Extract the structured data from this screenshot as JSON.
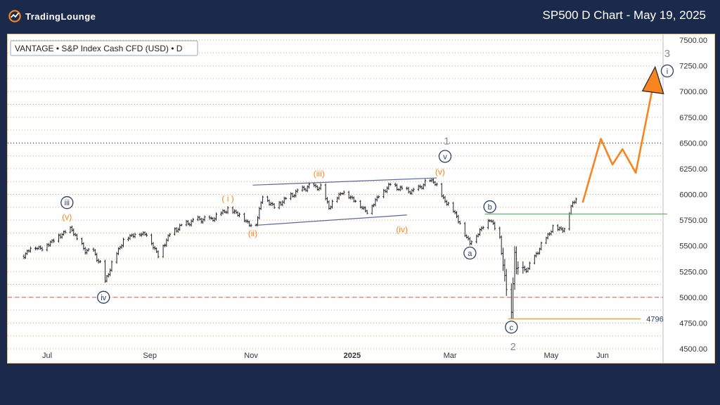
{
  "header": {
    "brand": "TradingLounge",
    "title": "SP500 D Chart - May 19, 2025"
  },
  "legend": "VANTAGE • S&P Index Cash CFD (USD) • D",
  "colors": {
    "background": "#1b2a4a",
    "wave_orange": "#f7841e",
    "wave_navy": "#2b3f63",
    "wave_grey": "#888888",
    "support_green": "#4caf50",
    "level_gold": "#e0a030",
    "dashed_red": "#e05050",
    "grid_orange": "#f3a555"
  },
  "chart_data": {
    "type": "candlestick",
    "title": "SP500 D Chart - May 19, 2025",
    "xlabel": "",
    "ylabel": "",
    "x_ticks": [
      "Jul",
      "Sep",
      "Nov",
      "2025",
      "Mar",
      "May",
      "Jun"
    ],
    "y_ticks": [
      4500,
      4750,
      5000,
      5250,
      5500,
      5750,
      6000,
      6250,
      6500,
      6750,
      7000,
      7250,
      7500
    ],
    "ylim": [
      4380,
      7560
    ],
    "grid": true,
    "price_path": [
      [
        "2024-06-17",
        5400
      ],
      [
        "2024-06-21",
        5490
      ],
      [
        "2024-06-28",
        5480
      ],
      [
        "2024-07-05",
        5560
      ],
      [
        "2024-07-10",
        5620
      ],
      [
        "2024-07-16",
        5670
      ],
      [
        "2024-07-19",
        5560
      ],
      [
        "2024-07-24",
        5460
      ],
      [
        "2024-07-29",
        5440
      ],
      [
        "2024-08-02",
        5330
      ],
      [
        "2024-08-05",
        5150
      ],
      [
        "2024-08-09",
        5330
      ],
      [
        "2024-08-16",
        5560
      ],
      [
        "2024-08-23",
        5620
      ],
      [
        "2024-08-30",
        5620
      ],
      [
        "2024-09-06",
        5410
      ],
      [
        "2024-09-13",
        5620
      ],
      [
        "2024-09-20",
        5700
      ],
      [
        "2024-09-30",
        5760
      ],
      [
        "2024-10-08",
        5760
      ],
      [
        "2024-10-18",
        5860
      ],
      [
        "2024-10-25",
        5810
      ],
      [
        "2024-10-31",
        5710
      ],
      [
        "2024-11-04",
        5720
      ],
      [
        "2024-11-08",
        5990
      ],
      [
        "2024-11-15",
        5880
      ],
      [
        "2024-11-22",
        5960
      ],
      [
        "2024-11-29",
        6030
      ],
      [
        "2024-12-06",
        6080
      ],
      [
        "2024-12-13",
        6070
      ],
      [
        "2024-12-18",
        5880
      ],
      [
        "2024-12-26",
        6030
      ],
      [
        "2025-01-03",
        5940
      ],
      [
        "2025-01-10",
        5830
      ],
      [
        "2025-01-17",
        5990
      ],
      [
        "2025-01-24",
        6100
      ],
      [
        "2025-01-31",
        6050
      ],
      [
        "2025-02-07",
        6030
      ],
      [
        "2025-02-14",
        6110
      ],
      [
        "2025-02-19",
        6140
      ],
      [
        "2025-02-25",
        5960
      ],
      [
        "2025-03-03",
        5850
      ],
      [
        "2025-03-10",
        5620
      ],
      [
        "2025-03-13",
        5530
      ],
      [
        "2025-03-20",
        5670
      ],
      [
        "2025-03-25",
        5770
      ],
      [
        "2025-03-31",
        5580
      ],
      [
        "2025-04-04",
        5070
      ],
      [
        "2025-04-07",
        4840
      ],
      [
        "2025-04-09",
        5460
      ],
      [
        "2025-04-10",
        5270
      ],
      [
        "2025-04-17",
        5280
      ],
      [
        "2025-04-24",
        5480
      ],
      [
        "2025-05-02",
        5680
      ],
      [
        "2025-05-09",
        5660
      ],
      [
        "2025-05-13",
        5890
      ],
      [
        "2025-05-16",
        5960
      ]
    ],
    "projection": [
      [
        "2025-05-20",
        5920
      ],
      [
        "2025-05-31",
        6540
      ],
      [
        "2025-06-07",
        6290
      ],
      [
        "2025-06-13",
        6440
      ],
      [
        "2025-06-21",
        6210
      ],
      [
        "2025-07-01",
        7020
      ]
    ],
    "levels": [
      {
        "label": "4796",
        "value": 4790,
        "from": "2025-04-05",
        "to": "2025-06-24"
      },
      {
        "label": "",
        "value": 5810,
        "from": "2025-03-22",
        "to": "2025-07-10"
      }
    ],
    "wave_labels": [
      {
        "text": "iii",
        "date": "2024-07-13",
        "price": 5920,
        "style": "navy-circle"
      },
      {
        "text": "(v)",
        "date": "2024-07-13",
        "price": 5780,
        "style": "orange"
      },
      {
        "text": "iv",
        "date": "2024-08-04",
        "price": 5000,
        "style": "navy-circle"
      },
      {
        "text": "( i )",
        "date": "2024-10-18",
        "price": 5960,
        "style": "orange"
      },
      {
        "text": "(ii)",
        "date": "2024-11-02",
        "price": 5620,
        "style": "orange"
      },
      {
        "text": "(iii)",
        "date": "2024-12-12",
        "price": 6200,
        "style": "orange"
      },
      {
        "text": "(iv)",
        "date": "2025-01-31",
        "price": 5660,
        "style": "orange"
      },
      {
        "text": "(v)",
        "date": "2025-02-23",
        "price": 6220,
        "style": "orange"
      },
      {
        "text": "v",
        "date": "2025-02-26",
        "price": 6370,
        "style": "navy-circle"
      },
      {
        "text": "1",
        "date": "2025-02-27",
        "price": 6520,
        "style": "grey"
      },
      {
        "text": "a",
        "date": "2025-03-13",
        "price": 5430,
        "style": "navy-circle"
      },
      {
        "text": "b",
        "date": "2025-03-25",
        "price": 5880,
        "style": "navy-circle"
      },
      {
        "text": "c",
        "date": "2025-04-07",
        "price": 4710,
        "style": "navy-circle"
      },
      {
        "text": "2",
        "date": "2025-04-08",
        "price": 4520,
        "style": "grey"
      },
      {
        "text": "3",
        "date": "2025-07-10",
        "price": 7370,
        "style": "grey"
      },
      {
        "text": "i",
        "date": "2025-07-10",
        "price": 7200,
        "style": "navy-circle"
      }
    ],
    "trendlines": [
      {
        "from": [
          "2024-11-02",
          6090
        ],
        "to": [
          "2025-02-21",
          6160
        ]
      },
      {
        "from": [
          "2024-11-04",
          5700
        ],
        "to": [
          "2025-02-03",
          5800
        ]
      }
    ]
  }
}
